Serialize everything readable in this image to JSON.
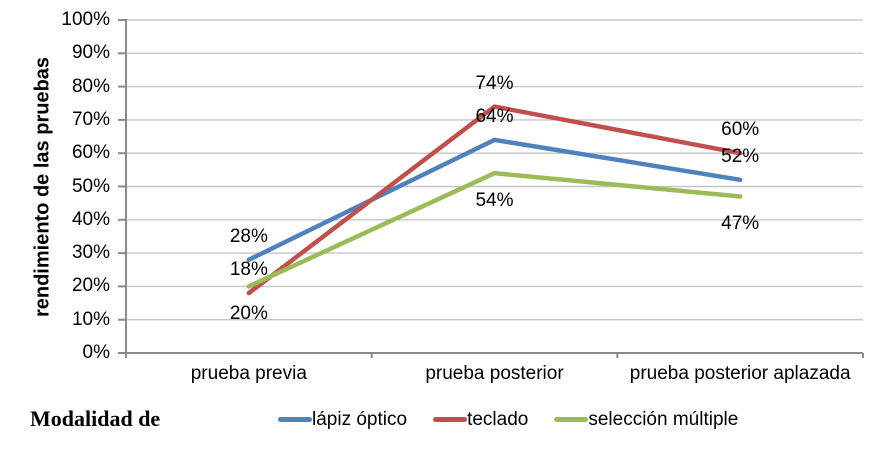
{
  "chart_data": {
    "type": "line",
    "title": "",
    "categories": [
      "prueba previa",
      "prueba posterior",
      "prueba posterior aplazada"
    ],
    "series": [
      {
        "name": "lápiz óptico",
        "color": "#4F81BD",
        "values": [
          28,
          64,
          52
        ],
        "data_label_position": "above"
      },
      {
        "name": "teclado",
        "color": "#C0504D",
        "values": [
          18,
          74,
          60
        ],
        "data_label_position": "above"
      },
      {
        "name": "selección múltiple",
        "color": "#9BBB59",
        "values": [
          20,
          54,
          47
        ],
        "data_label_position": "below"
      }
    ],
    "ylabel": "rendimiento de las pruebas",
    "xlabel": "",
    "ylim": [
      0,
      100
    ],
    "ytick_step": 10,
    "ytick_suffix": "%",
    "data_label_suffix": "%",
    "grid": "horizontal",
    "legend_position": "bottom"
  },
  "footer": {
    "legend_prefix_label": "Modalidad de"
  },
  "colors": {
    "gridline": "#C6C6C6",
    "axis": "#8A8A8A",
    "label_text": "#000000"
  }
}
